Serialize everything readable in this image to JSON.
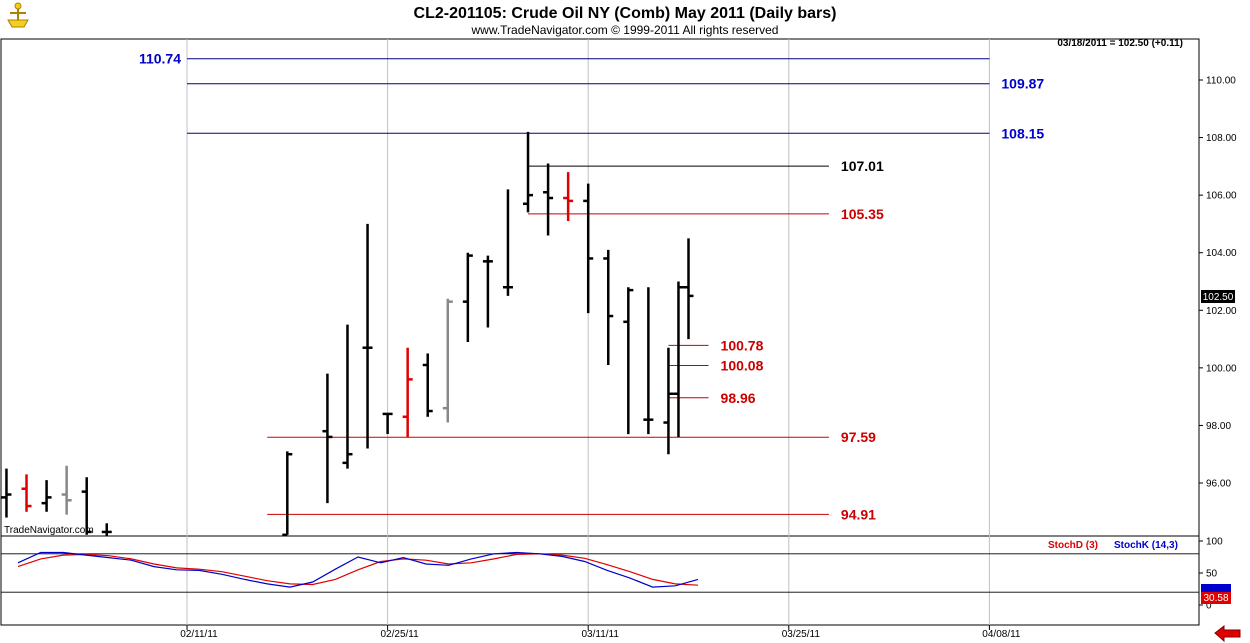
{
  "header": {
    "title": "CL2-201105:  Crude Oil NY (Comb) May 2011  (Daily bars)",
    "subtitle": "www.TradeNavigator.com © 1999-2011 All rights reserved",
    "quote": "03/18/2011 = 102.50 (+0.11)",
    "watermark": "TradeNavigator.com"
  },
  "colors": {
    "up_bar": "#000000",
    "down_bar": "#e00000",
    "inside_bar": "#888888",
    "resistance_line": "#000080",
    "pivot_line": "#000000",
    "support_line": "#cc0000",
    "stoch_d": "#e00000",
    "stoch_k": "#0000cc"
  },
  "chart_data": [
    {
      "type": "ohlc",
      "title": "CL2-201105:  Crude Oil NY (Comb) May 2011  (Daily bars)",
      "x_type": "date",
      "ylim": [
        94.0,
        111.0
      ],
      "y_ticks": [
        96.0,
        98.0,
        100.0,
        102.0,
        104.0,
        106.0,
        108.0,
        110.0
      ],
      "y_tick_labels": [
        "96.00",
        "98.00",
        "100.00",
        "102.00",
        "104.00",
        "106.00",
        "108.00",
        "110.00"
      ],
      "x_tick_labels": [
        "02/11/11",
        "02/25/11",
        "03/11/11",
        "03/25/11",
        "04/08/11"
      ],
      "last_price_label": "102.50",
      "grid": true,
      "bars": [
        {
          "date": "2011-01-31",
          "open": 95.5,
          "high": 96.5,
          "low": 94.8,
          "close": 95.6,
          "color": "black"
        },
        {
          "date": "2011-02-01",
          "open": 95.8,
          "high": 96.3,
          "low": 95.0,
          "close": 95.2,
          "color": "red"
        },
        {
          "date": "2011-02-02",
          "open": 95.3,
          "high": 96.1,
          "low": 95.0,
          "close": 95.5,
          "color": "black"
        },
        {
          "date": "2011-02-03",
          "open": 95.6,
          "high": 96.6,
          "low": 94.9,
          "close": 95.4,
          "color": "gray"
        },
        {
          "date": "2011-02-04",
          "open": 95.7,
          "high": 96.2,
          "low": 94.2,
          "close": 94.3,
          "color": "black"
        },
        {
          "date": "2011-02-07",
          "open": 94.3,
          "high": 94.6,
          "low": 94.0,
          "close": 94.3,
          "color": "black"
        },
        {
          "date": "2011-02-18",
          "open": 94.2,
          "high": 97.1,
          "low": 94.2,
          "close": 97.0,
          "color": "black"
        },
        {
          "date": "2011-02-22",
          "open": 97.8,
          "high": 99.8,
          "low": 95.3,
          "close": 97.6,
          "color": "black"
        },
        {
          "date": "2011-02-23",
          "open": 96.7,
          "high": 101.5,
          "low": 96.5,
          "close": 97.0,
          "color": "black"
        },
        {
          "date": "2011-02-24",
          "open": 100.7,
          "high": 105.0,
          "low": 97.2,
          "close": 100.7,
          "color": "black"
        },
        {
          "date": "2011-02-25",
          "open": 98.4,
          "high": 98.4,
          "low": 97.7,
          "close": 98.4,
          "color": "black"
        },
        {
          "date": "2011-02-28",
          "open": 98.3,
          "high": 100.7,
          "low": 97.6,
          "close": 99.6,
          "color": "red"
        },
        {
          "date": "2011-03-01",
          "open": 100.1,
          "high": 100.5,
          "low": 98.3,
          "close": 98.5,
          "color": "black"
        },
        {
          "date": "2011-03-02",
          "open": 98.6,
          "high": 102.4,
          "low": 98.1,
          "close": 102.3,
          "color": "gray"
        },
        {
          "date": "2011-03-03",
          "open": 102.3,
          "high": 104.0,
          "low": 100.9,
          "close": 103.9,
          "color": "black"
        },
        {
          "date": "2011-03-04",
          "open": 103.7,
          "high": 103.9,
          "low": 101.4,
          "close": 103.7,
          "color": "black"
        },
        {
          "date": "2011-03-07",
          "open": 102.8,
          "high": 106.2,
          "low": 102.5,
          "close": 102.8,
          "color": "black"
        },
        {
          "date": "2011-03-08",
          "open": 105.7,
          "high": 108.2,
          "low": 105.4,
          "close": 106.0,
          "color": "black"
        },
        {
          "date": "2011-03-09",
          "open": 106.1,
          "high": 107.1,
          "low": 104.6,
          "close": 105.9,
          "color": "black"
        },
        {
          "date": "2011-03-10",
          "open": 105.9,
          "high": 106.8,
          "low": 105.1,
          "close": 105.8,
          "color": "red"
        },
        {
          "date": "2011-03-11",
          "open": 105.8,
          "high": 106.4,
          "low": 101.9,
          "close": 103.8,
          "color": "black"
        },
        {
          "date": "2011-03-14",
          "open": 103.8,
          "high": 104.1,
          "low": 100.1,
          "close": 101.8,
          "color": "black"
        },
        {
          "date": "2011-03-15",
          "open": 101.6,
          "high": 102.8,
          "low": 97.7,
          "close": 102.7,
          "color": "black"
        },
        {
          "date": "2011-03-16",
          "open": 98.2,
          "high": 102.8,
          "low": 97.7,
          "close": 98.2,
          "color": "black"
        },
        {
          "date": "2011-03-17",
          "open": 98.1,
          "high": 100.7,
          "low": 97.0,
          "close": 99.1,
          "color": "black"
        },
        {
          "date": "2011-03-17b",
          "open": 99.1,
          "high": 103.0,
          "low": 97.6,
          "close": 102.8,
          "color": "black"
        },
        {
          "date": "2011-03-18",
          "open": 102.8,
          "high": 104.5,
          "low": 101.0,
          "close": 102.5,
          "color": "black"
        }
      ],
      "levels": [
        {
          "value": 110.74,
          "label": "110.74",
          "color": "#0000cc",
          "line": "#000080",
          "label_side": "left",
          "x_start": "2011-02-13",
          "x_end": "2011-04-10"
        },
        {
          "value": 109.87,
          "label": "109.87",
          "color": "#0000cc",
          "line": "#000080",
          "label_side": "right",
          "x_start": "2011-02-13",
          "x_end": "2011-04-10"
        },
        {
          "value": 108.15,
          "label": "108.15",
          "color": "#0000cc",
          "line": "#000080",
          "label_side": "right",
          "x_start": "2011-02-13",
          "x_end": "2011-04-10"
        },
        {
          "value": 107.01,
          "label": "107.01",
          "color": "#000000",
          "line": "#000000",
          "label_side": "right",
          "x_start": "2011-03-08",
          "x_end": "2011-03-29"
        },
        {
          "value": 105.35,
          "label": "105.35",
          "color": "#cc0000",
          "line": "#cc0000",
          "label_side": "right",
          "x_start": "2011-03-08",
          "x_end": "2011-03-29"
        },
        {
          "value": 100.78,
          "label": "100.78",
          "color": "#cc0000",
          "line": "#cc0000",
          "label_side": "right",
          "x_start": "2011-03-17",
          "x_end": "2011-03-21"
        },
        {
          "value": 100.08,
          "label": "100.08",
          "color": "#cc0000",
          "line": "#cc0000",
          "label_side": "right",
          "x_start": "2011-03-17",
          "x_end": "2011-03-21"
        },
        {
          "value": 98.96,
          "label": "98.96",
          "color": "#cc0000",
          "line": "#cc0000",
          "label_side": "right",
          "x_start": "2011-03-17",
          "x_end": "2011-03-21"
        },
        {
          "value": 97.59,
          "label": "97.59",
          "color": "#cc0000",
          "line": "#cc0000",
          "label_side": "right",
          "x_start": "2011-02-17",
          "x_end": "2011-03-29"
        },
        {
          "value": 94.91,
          "label": "94.91",
          "color": "#cc0000",
          "line": "#cc0000",
          "label_side": "right",
          "x_start": "2011-02-17",
          "x_end": "2011-03-29"
        }
      ]
    },
    {
      "type": "line",
      "ylim": [
        0,
        100
      ],
      "y_ticks": [
        0,
        50,
        100
      ],
      "y_tick_labels": [
        "0",
        "50",
        "100"
      ],
      "last_value_labels": [
        "30.58"
      ],
      "legend": [
        {
          "name": "StochD (3)",
          "color": "#e00000"
        },
        {
          "name": "StochK (14,3)",
          "color": "#0000cc"
        }
      ],
      "series": [
        {
          "name": "StochD (3)",
          "color": "#e00000",
          "values": [
            60,
            72,
            78,
            79,
            77,
            72,
            64,
            58,
            56,
            52,
            45,
            38,
            33,
            32,
            40,
            55,
            68,
            72,
            70,
            64,
            66,
            72,
            79,
            80,
            78,
            73,
            63,
            52,
            40,
            33,
            31
          ]
        },
        {
          "name": "StochK (14,3)",
          "color": "#0000cc",
          "values": [
            66,
            82,
            82,
            78,
            74,
            70,
            60,
            55,
            54,
            48,
            40,
            33,
            28,
            36,
            56,
            75,
            66,
            74,
            64,
            62,
            72,
            80,
            82,
            80,
            76,
            68,
            54,
            42,
            28,
            30,
            40
          ]
        }
      ]
    }
  ]
}
